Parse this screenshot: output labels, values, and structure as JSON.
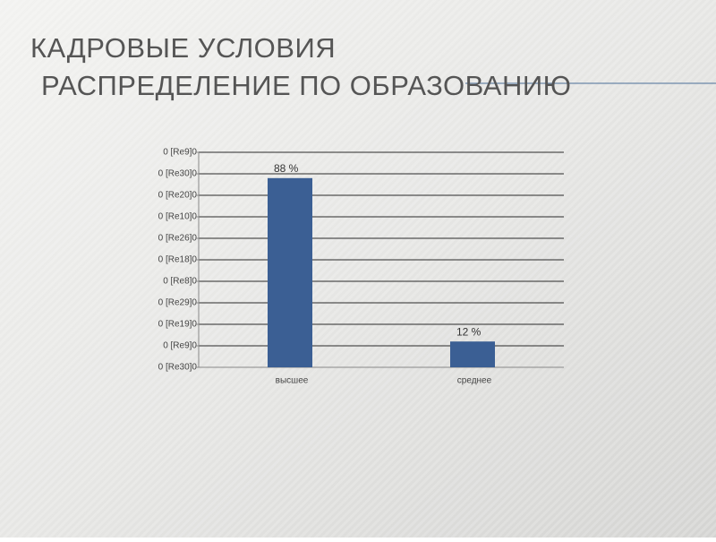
{
  "chart_data": {
    "type": "bar",
    "title": "КАДРОВЫЕ УСЛОВИЯ",
    "subtitle": "РАСПРЕДЕЛЕНИЕ ПО ОБРАЗОВАНИЮ",
    "categories": [
      "высшее",
      "среднее"
    ],
    "values": [
      88,
      12
    ],
    "value_labels": [
      "88 %",
      "12 %"
    ],
    "color": "#3b5f94",
    "ylim": [
      0,
      100
    ],
    "yticks": [
      {
        "value": 0,
        "label": "0 [Re30]0"
      },
      {
        "value": 10,
        "label": "0 [Re9]0"
      },
      {
        "value": 20,
        "label": "0 [Re19]0"
      },
      {
        "value": 30,
        "label": "0 [Re29]0"
      },
      {
        "value": 40,
        "label": "0 [Re8]0"
      },
      {
        "value": 50,
        "label": "0 [Re18]0"
      },
      {
        "value": 60,
        "label": "0 [Re26]0"
      },
      {
        "value": 70,
        "label": "0 [Re10]0"
      },
      {
        "value": 80,
        "label": "0 [Re20]0"
      },
      {
        "value": 90,
        "label": "0 [Re30]0"
      },
      {
        "value": 100,
        "label": "0 [Re9]0"
      }
    ],
    "grid": true
  }
}
